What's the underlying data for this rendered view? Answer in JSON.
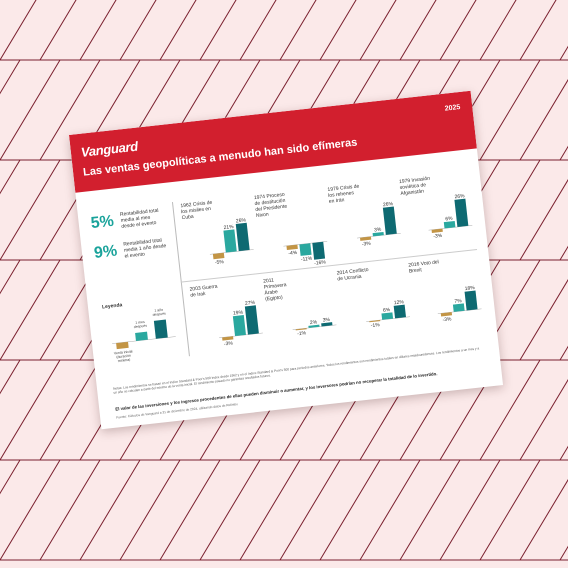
{
  "document": {
    "brand": "Vanguard",
    "year": "2025",
    "title": "Las ventas geopolíticas a menudo han sido efímeras",
    "stats": [
      {
        "value": "5%",
        "label": "Rentabilidad total media al mes desde el evento"
      },
      {
        "value": "9%",
        "label": "Rentabilidad total media 1 año desde el evento"
      }
    ],
    "legend": {
      "title": "Leyenda",
      "labels": [
        "Venta inicial (duración mínima)",
        "1 mes después",
        "1 año después"
      ]
    },
    "panels": [
      {
        "event": "1962 Crisis de los misiles en Cuba",
        "values": [
          "-5%",
          "21%",
          "26%"
        ]
      },
      {
        "event": "1974 Proceso de destitución del Presidente Nixon",
        "values": [
          "-4%",
          "-11%",
          "-16%"
        ]
      },
      {
        "event": "1979 Crisis de los rehenes en Irán",
        "values": [
          "-3%",
          "3%",
          "26%"
        ]
      },
      {
        "event": "1979 Invasión soviética de Afganistán",
        "values": [
          "-3%",
          "6%",
          "26%"
        ]
      },
      {
        "event": "2003 Guerra de Irak",
        "values": [
          "-3%",
          "19%",
          "27%"
        ]
      },
      {
        "event": "2011 Primavera Árabe (Egipto)",
        "values": [
          "-1%",
          "2%",
          "3%"
        ]
      },
      {
        "event": "2014 Conflicto de Ucrania",
        "values": [
          "-1%",
          "6%",
          "12%"
        ]
      },
      {
        "event": "2016 Voto del Brexit",
        "values": [
          "-3%",
          "7%",
          "18%"
        ]
      }
    ],
    "footnote": "Notas: Los rendimientos se basan en el índice Standard & Poor's 500 Index desde 1962 y en el índice Standard & Poor's 500 para períodos anteriores. Todos los rendimientos son rendimientos totales en dólares estadounidenses. Los rendimientos a un mes y a un año se calculan a partir del mínimo de la venta inicial. El rendimiento pasado no garantiza resultados futuros.",
    "lead": "El valor de las inversiones y los ingresos procedentes de ellas pueden disminuir o aumentar, y los inversores podrían no recuperar la totalidad de lo invertido.",
    "source": "Fuente: Cálculos de Vanguard a 31 de diciembre de 2024, utilizando datos de Refinitiv."
  },
  "colors": {
    "header": "#d21f2e",
    "dip": "#c39545",
    "month": "#2aa89f",
    "year": "#0e6a72",
    "pattern": "#7a1f2e"
  }
}
